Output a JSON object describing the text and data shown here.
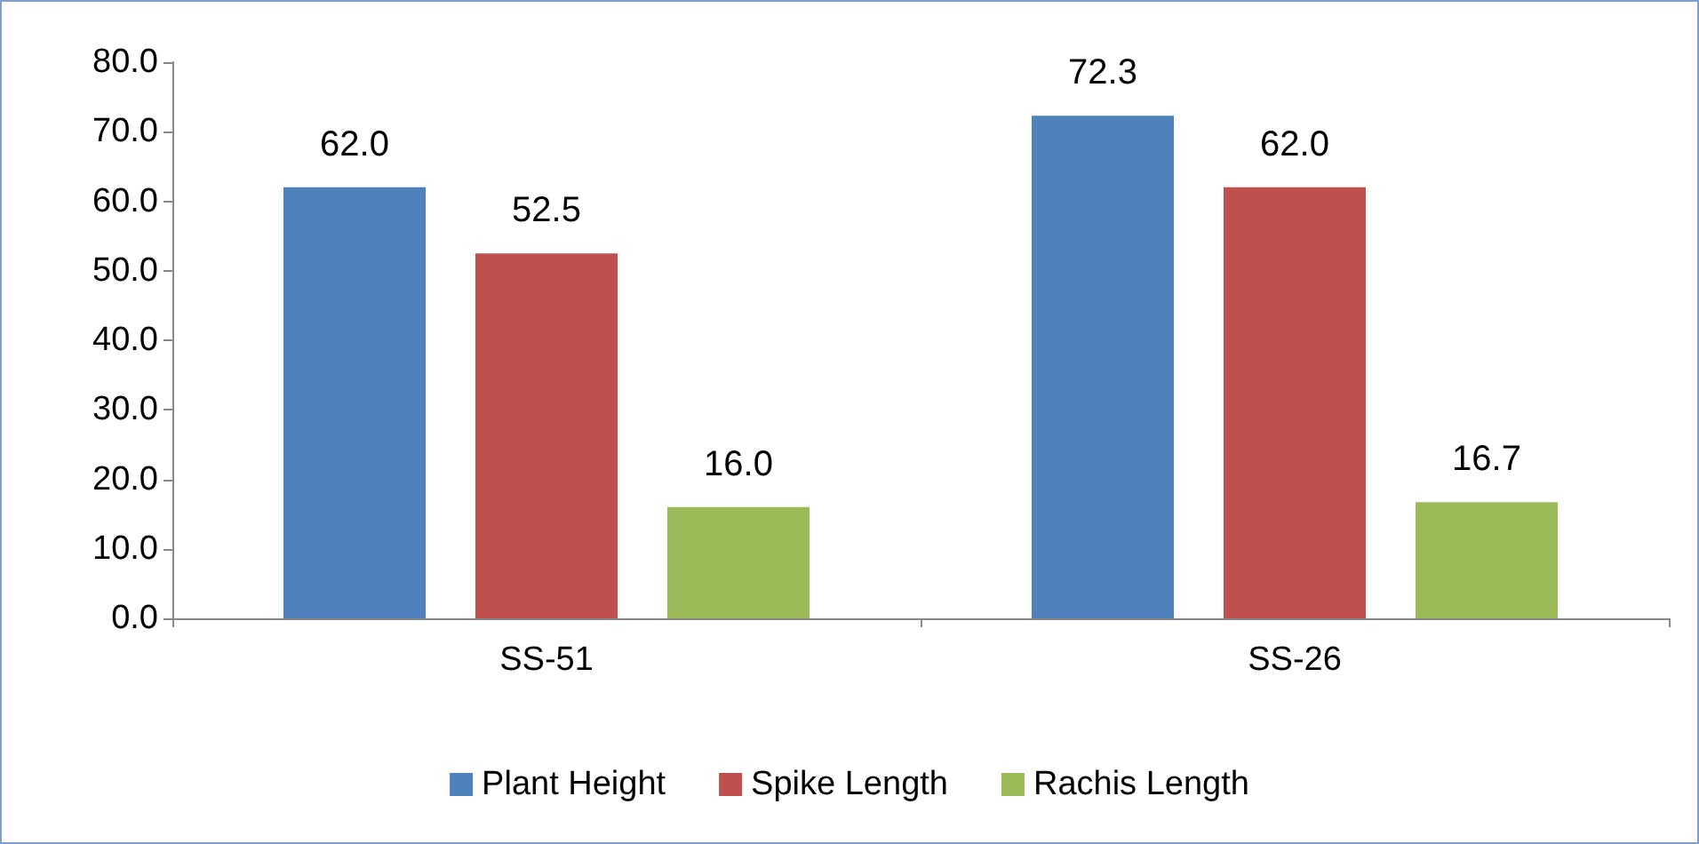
{
  "chart_data": {
    "type": "bar",
    "categories": [
      "SS-51",
      "SS-26"
    ],
    "series": [
      {
        "name": "Plant Height",
        "color": "#4f81bd",
        "values": [
          62.0,
          72.3
        ],
        "value_labels": [
          "62.0",
          "72.3"
        ]
      },
      {
        "name": "Spike Length",
        "color": "#c0504d",
        "values": [
          52.5,
          62.0
        ],
        "value_labels": [
          "52.5",
          "62.0"
        ]
      },
      {
        "name": "Rachis Length",
        "color": "#9bbb59",
        "values": [
          16.0,
          16.7
        ],
        "value_labels": [
          "16.0",
          "16.7"
        ]
      }
    ],
    "ylim": [
      0,
      80
    ],
    "yticks": [
      {
        "value": 0,
        "label": "0.0"
      },
      {
        "value": 10,
        "label": "10.0"
      },
      {
        "value": 20,
        "label": "20.0"
      },
      {
        "value": 30,
        "label": "30.0"
      },
      {
        "value": 40,
        "label": "40.0"
      },
      {
        "value": 50,
        "label": "50.0"
      },
      {
        "value": 60,
        "label": "60.0"
      },
      {
        "value": 70,
        "label": "70.0"
      },
      {
        "value": 80,
        "label": "80.0"
      }
    ],
    "grid": false,
    "legend": "bottom"
  }
}
